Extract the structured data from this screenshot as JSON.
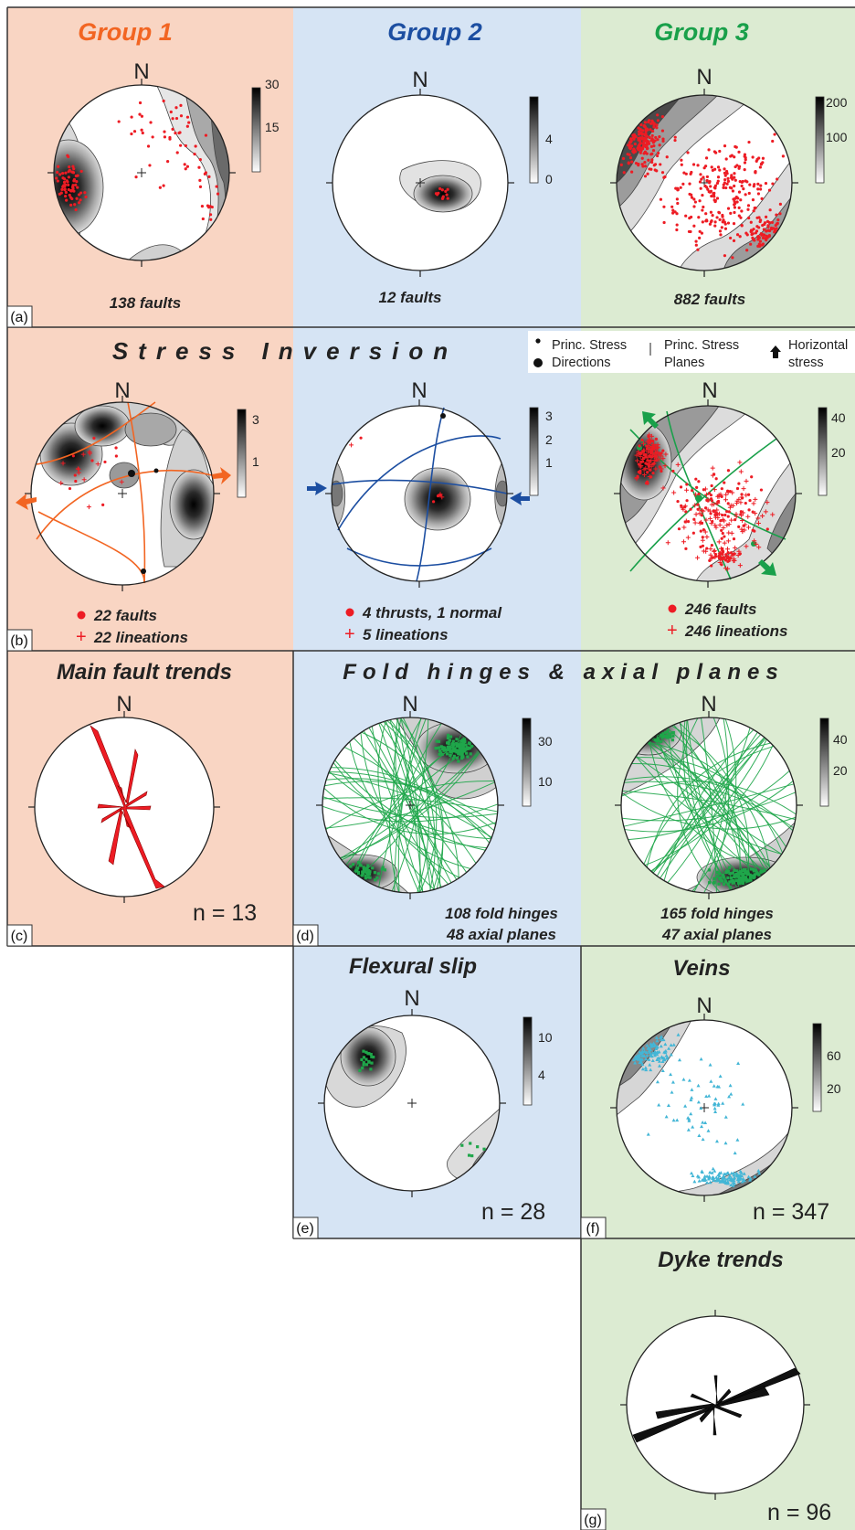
{
  "colors": {
    "group1_bg": "#f9d5c3",
    "group2_bg": "#d6e4f4",
    "group3_bg": "#dcebd2",
    "group1_title": "#f26522",
    "group2_title": "#1c4ea1",
    "group3_title": "#19a04a",
    "data_red": "#ed1c24",
    "fold_green": "#1fa64a",
    "vein_cyan": "#43b6d6",
    "rose_red": "#ed1c24",
    "rose_black": "#111111"
  },
  "columns": [
    {
      "title": "Group 1"
    },
    {
      "title": "Group 2"
    },
    {
      "title": "Group 3"
    }
  ],
  "north_label": "N",
  "rows": {
    "a": {
      "panel_label": "(a)",
      "stereonets": [
        {
          "count": "138 faults",
          "scale_ticks": [
            "30",
            "15"
          ]
        },
        {
          "count": "12 faults",
          "scale_ticks": [
            "4",
            "0"
          ]
        },
        {
          "count": "882 faults",
          "scale_ticks": [
            "200",
            "100"
          ]
        }
      ]
    },
    "b": {
      "panel_label": "(b)",
      "title": "Stress Inversion",
      "legend": {
        "directions_line1": "Princ. Stress",
        "directions_line2": "Directions",
        "planes_line1": "Princ. Stress",
        "planes_line2": "Planes",
        "horizontal_line1": "Horizontal",
        "horizontal_line2": "stress"
      },
      "stereonets": [
        {
          "faults": "22 faults",
          "lineations": "22 lineations",
          "scale_ticks": [
            "3",
            "1"
          ]
        },
        {
          "faults": "4 thrusts, 1 normal",
          "lineations": "5 lineations",
          "scale_ticks": [
            "3",
            "2",
            "1"
          ]
        },
        {
          "faults": "246 faults",
          "lineations": "246 lineations",
          "scale_ticks": [
            "40",
            "20"
          ]
        }
      ]
    },
    "c": {
      "panel_label": "(c)",
      "title": "Main fault trends",
      "n": "n = 13"
    },
    "d": {
      "panel_label": "(d)",
      "title": "Fold hinges & axial planes",
      "stereonets": [
        {
          "hinges": "108 fold hinges",
          "planes": "48 axial planes",
          "scale_ticks": [
            "30",
            "10"
          ]
        },
        {
          "hinges": "165 fold hinges",
          "planes": "47 axial planes",
          "scale_ticks": [
            "40",
            "20"
          ]
        }
      ]
    },
    "e": {
      "panel_label": "(e)",
      "title": "Flexural slip",
      "n": "n = 28",
      "scale_ticks": [
        "10",
        "4"
      ]
    },
    "f": {
      "panel_label": "(f)",
      "title": "Veins",
      "n": "n = 347",
      "scale_ticks": [
        "60",
        "20"
      ]
    },
    "g": {
      "panel_label": "(g)",
      "title": "Dyke trends",
      "n": "n = 96"
    }
  }
}
